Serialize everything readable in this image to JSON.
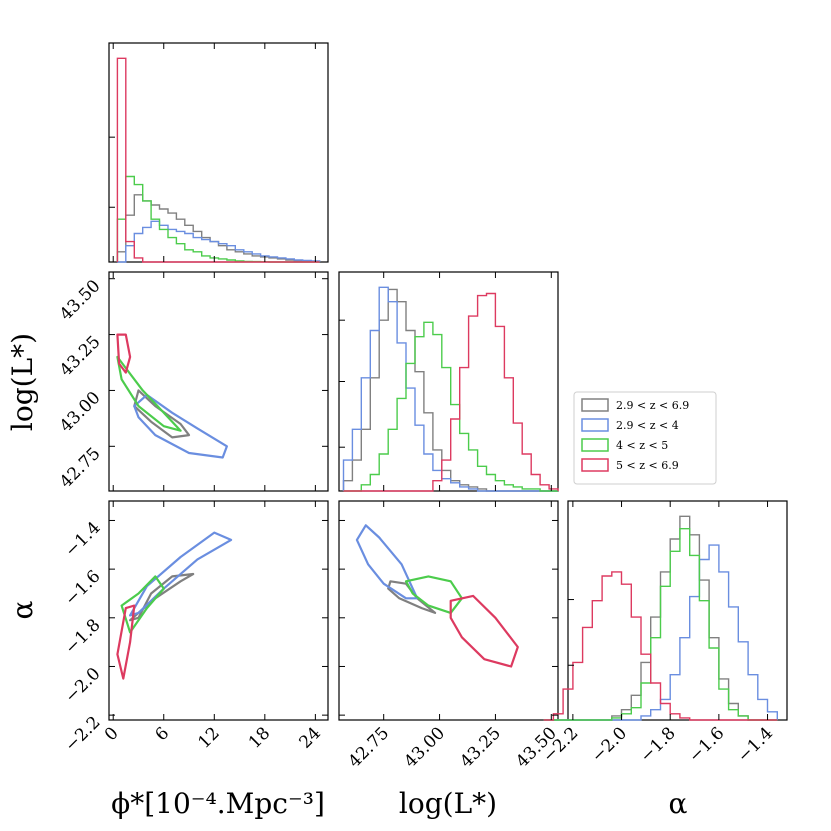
{
  "colors": {
    "all": "#808080",
    "z1": "#6a8ee0",
    "z2": "#4ccc4c",
    "z3": "#dd3a60"
  },
  "labels": {
    "phi_x": "ϕ*[10⁻⁴.Mpc⁻³]",
    "logL_y": "log(L*)",
    "logL_x": "log(L*)",
    "alpha_y": "α",
    "alpha_x": "α"
  },
  "legend": [
    {
      "key": "all",
      "label": "2.9 < z < 6.9"
    },
    {
      "key": "z1",
      "label": "2.9 < z < 4"
    },
    {
      "key": "z2",
      "label": "4 < z < 5"
    },
    {
      "key": "z3",
      "label": "5 < z < 6.9"
    }
  ],
  "chart_data": {
    "type": "corner",
    "parameters": [
      "phi_star",
      "log_L_star",
      "alpha"
    ],
    "grid": false,
    "legend_placement": "right of middle row",
    "axes": {
      "phi_star": {
        "range": [
          -0.5,
          25.5
        ],
        "ticks": [
          0,
          6,
          12,
          18,
          24
        ],
        "tick_labels": [
          "0",
          "6",
          "12",
          "18",
          "24"
        ]
      },
      "log_L_star": {
        "range": [
          42.55,
          43.53
        ],
        "ticks": [
          42.75,
          43.0,
          43.25,
          43.5
        ],
        "tick_labels": [
          "42.75",
          "43.00",
          "43.25",
          "43.50"
        ]
      },
      "alpha": {
        "range": [
          -2.22,
          -1.32
        ],
        "ticks": [
          -2.2,
          -2.0,
          -1.8,
          -1.6,
          -1.4
        ],
        "tick_labels": [
          "−2.2",
          "−2.0",
          "−1.8",
          "−1.6",
          "−1.4"
        ]
      }
    },
    "hist_phi": {
      "bin_edges": [
        0.5,
        1.5,
        2.5,
        3.5,
        4.5,
        5.5,
        6.5,
        7.5,
        8.5,
        9.5,
        10.5,
        11.5,
        12.5,
        13.5,
        14.5,
        15.5,
        16.5,
        17.5,
        18.5,
        19.5,
        20.5,
        21.5,
        22.5,
        23.5,
        24.5
      ],
      "series": [
        {
          "key": "all",
          "counts": [
            0.05,
            0.23,
            0.33,
            0.3,
            0.28,
            0.26,
            0.24,
            0.21,
            0.18,
            0.15,
            0.12,
            0.1,
            0.08,
            0.06,
            0.05,
            0.04,
            0.03,
            0.025,
            0.02,
            0.015,
            0.01,
            0.005,
            0.004,
            0.003
          ]
        },
        {
          "key": "z1",
          "counts": [
            0.0,
            0.08,
            0.14,
            0.17,
            0.2,
            0.18,
            0.16,
            0.15,
            0.14,
            0.12,
            0.11,
            0.1,
            0.09,
            0.08,
            0.06,
            0.05,
            0.04,
            0.03,
            0.025,
            0.02,
            0.015,
            0.01,
            0.008,
            0.005
          ]
        },
        {
          "key": "z2",
          "counts": [
            0.21,
            0.42,
            0.38,
            0.3,
            0.21,
            0.16,
            0.12,
            0.09,
            0.06,
            0.05,
            0.03,
            0.02,
            0.015,
            0.01,
            0.005,
            0.003,
            0.002,
            0.001,
            0.0,
            0.0,
            0.0,
            0.0,
            0.0,
            0.0
          ]
        },
        {
          "key": "z3",
          "counts": [
            1.0,
            0.1,
            0.02,
            0.0,
            0.0,
            0.0,
            0.0,
            0.0,
            0.0,
            0.0,
            0.0,
            0.0,
            0.0,
            0.0,
            0.0,
            0.0,
            0.0,
            0.0,
            0.0,
            0.0,
            0.0,
            0.0,
            0.0,
            0.0
          ]
        }
      ]
    },
    "hist_logL": {
      "bin_edges": [
        42.57,
        42.61,
        42.65,
        42.69,
        42.73,
        42.77,
        42.81,
        42.85,
        42.89,
        42.93,
        42.97,
        43.01,
        43.05,
        43.09,
        43.13,
        43.17,
        43.21,
        43.25,
        43.29,
        43.33,
        43.37,
        43.41,
        43.45,
        43.49,
        43.53
      ],
      "series": [
        {
          "key": "all",
          "counts": [
            0.05,
            0.15,
            0.3,
            0.55,
            0.83,
            0.98,
            0.92,
            0.78,
            0.58,
            0.38,
            0.2,
            0.1,
            0.05,
            0.03,
            0.02,
            0.01,
            0.0,
            0.0,
            0.0,
            0.0,
            0.0,
            0.0,
            0.0,
            0.0
          ]
        },
        {
          "key": "z1",
          "counts": [
            0.15,
            0.3,
            0.55,
            0.78,
            0.99,
            0.92,
            0.72,
            0.5,
            0.32,
            0.18,
            0.1,
            0.06,
            0.04,
            0.02,
            0.01,
            0.0,
            0.0,
            0.0,
            0.0,
            0.0,
            0.0,
            0.0,
            0.0,
            0.0
          ]
        },
        {
          "key": "z2",
          "counts": [
            0.0,
            0.0,
            0.03,
            0.08,
            0.18,
            0.3,
            0.45,
            0.62,
            0.75,
            0.82,
            0.76,
            0.6,
            0.42,
            0.28,
            0.2,
            0.12,
            0.08,
            0.05,
            0.03,
            0.02,
            0.01,
            0.01,
            0.0,
            0.0
          ]
        },
        {
          "key": "z3",
          "counts": [
            0.0,
            0.0,
            0.0,
            0.0,
            0.0,
            0.0,
            0.0,
            0.0,
            0.0,
            0.0,
            0.05,
            0.15,
            0.35,
            0.6,
            0.85,
            0.95,
            0.96,
            0.8,
            0.55,
            0.33,
            0.18,
            0.08,
            0.03,
            0.01
          ]
        }
      ]
    },
    "hist_alpha": {
      "bin_edges": [
        -2.32,
        -2.28,
        -2.24,
        -2.2,
        -2.16,
        -2.12,
        -2.08,
        -2.04,
        -2.0,
        -1.96,
        -1.92,
        -1.88,
        -1.84,
        -1.8,
        -1.76,
        -1.72,
        -1.68,
        -1.64,
        -1.6,
        -1.56,
        -1.52,
        -1.48,
        -1.44,
        -1.4,
        -1.36
      ],
      "series": [
        {
          "key": "all",
          "counts": [
            0.0,
            0.0,
            0.0,
            0.0,
            0.0,
            0.0,
            0.0,
            0.02,
            0.05,
            0.12,
            0.28,
            0.5,
            0.72,
            0.88,
            0.99,
            0.9,
            0.68,
            0.4,
            0.2,
            0.08,
            0.02,
            0.0,
            0.0,
            0.0
          ]
        },
        {
          "key": "z1",
          "counts": [
            0.0,
            0.0,
            0.0,
            0.0,
            0.0,
            0.0,
            0.0,
            0.0,
            0.0,
            0.0,
            0.02,
            0.05,
            0.1,
            0.22,
            0.4,
            0.6,
            0.78,
            0.85,
            0.72,
            0.55,
            0.38,
            0.22,
            0.1,
            0.04
          ]
        },
        {
          "key": "z2",
          "counts": [
            0.0,
            0.0,
            0.0,
            0.0,
            0.0,
            0.0,
            0.0,
            0.01,
            0.03,
            0.06,
            0.18,
            0.4,
            0.65,
            0.82,
            0.93,
            0.8,
            0.58,
            0.35,
            0.15,
            0.05,
            0.02,
            0.0,
            0.0,
            0.0
          ]
        },
        {
          "key": "z3",
          "counts": [
            0.0,
            0.03,
            0.15,
            0.28,
            0.45,
            0.58,
            0.7,
            0.72,
            0.66,
            0.5,
            0.32,
            0.18,
            0.08,
            0.03,
            0.01,
            0.0,
            0.0,
            0.0,
            0.0,
            0.0,
            0.0,
            0.0,
            0.0,
            0.0
          ]
        }
      ]
    },
    "contours": {
      "phi_vs_logL": [
        {
          "key": "all",
          "points": [
            [
              3.0,
              43.0
            ],
            [
              5.0,
              42.93
            ],
            [
              8.0,
              42.85
            ],
            [
              9.0,
              42.8
            ],
            [
              7.0,
              42.79
            ],
            [
              4.5,
              42.86
            ],
            [
              2.5,
              42.93
            ],
            [
              3.0,
              43.0
            ]
          ]
        },
        {
          "key": "z1",
          "points": [
            [
              2.5,
              42.93
            ],
            [
              4.0,
              42.98
            ],
            [
              7.0,
              42.9
            ],
            [
              10.0,
              42.83
            ],
            [
              13.5,
              42.75
            ],
            [
              13.0,
              42.7
            ],
            [
              9.0,
              42.72
            ],
            [
              5.0,
              42.8
            ],
            [
              3.0,
              42.88
            ],
            [
              2.5,
              42.93
            ]
          ]
        },
        {
          "key": "z2",
          "points": [
            [
              0.5,
              43.15
            ],
            [
              1.5,
              43.1
            ],
            [
              3.5,
              43.0
            ],
            [
              6.0,
              42.9
            ],
            [
              8.0,
              42.82
            ],
            [
              6.0,
              42.84
            ],
            [
              3.0,
              42.93
            ],
            [
              1.0,
              43.05
            ],
            [
              0.5,
              43.15
            ]
          ]
        },
        {
          "key": "z3",
          "points": [
            [
              0.5,
              43.25
            ],
            [
              1.5,
              43.25
            ],
            [
              2.0,
              43.15
            ],
            [
              1.5,
              43.08
            ],
            [
              0.7,
              43.12
            ],
            [
              0.5,
              43.25
            ]
          ]
        }
      ],
      "phi_vs_alpha": [
        {
          "key": "all",
          "points": [
            [
              2.0,
              -1.81
            ],
            [
              5.0,
              -1.72
            ],
            [
              8.0,
              -1.65
            ],
            [
              9.5,
              -1.62
            ],
            [
              7.0,
              -1.63
            ],
            [
              4.5,
              -1.7
            ],
            [
              3.0,
              -1.8
            ],
            [
              2.0,
              -1.81
            ]
          ]
        },
        {
          "key": "z1",
          "points": [
            [
              2.0,
              -1.79
            ],
            [
              4.0,
              -1.67
            ],
            [
              8.0,
              -1.55
            ],
            [
              12.0,
              -1.45
            ],
            [
              14.0,
              -1.48
            ],
            [
              10.0,
              -1.56
            ],
            [
              6.0,
              -1.68
            ],
            [
              3.0,
              -1.78
            ],
            [
              2.0,
              -1.79
            ]
          ]
        },
        {
          "key": "z2",
          "points": [
            [
              1.0,
              -1.75
            ],
            [
              3.0,
              -1.7
            ],
            [
              5.0,
              -1.63
            ],
            [
              6.0,
              -1.68
            ],
            [
              4.0,
              -1.76
            ],
            [
              2.0,
              -1.86
            ],
            [
              1.0,
              -1.75
            ]
          ]
        },
        {
          "key": "z3",
          "points": [
            [
              0.5,
              -1.95
            ],
            [
              1.5,
              -1.76
            ],
            [
              2.5,
              -1.75
            ],
            [
              2.0,
              -1.9
            ],
            [
              1.2,
              -2.05
            ],
            [
              0.5,
              -1.95
            ]
          ]
        }
      ],
      "logL_vs_alpha": [
        {
          "key": "all",
          "points": [
            [
              42.78,
              -1.65
            ],
            [
              42.85,
              -1.66
            ],
            [
              42.9,
              -1.72
            ],
            [
              42.98,
              -1.78
            ],
            [
              42.92,
              -1.76
            ],
            [
              42.82,
              -1.72
            ],
            [
              42.77,
              -1.68
            ],
            [
              42.78,
              -1.65
            ]
          ]
        },
        {
          "key": "z1",
          "points": [
            [
              42.67,
              -1.42
            ],
            [
              42.73,
              -1.47
            ],
            [
              42.83,
              -1.58
            ],
            [
              42.9,
              -1.72
            ],
            [
              42.85,
              -1.72
            ],
            [
              42.75,
              -1.66
            ],
            [
              42.68,
              -1.58
            ],
            [
              42.63,
              -1.48
            ],
            [
              42.67,
              -1.42
            ]
          ]
        },
        {
          "key": "z2",
          "points": [
            [
              42.85,
              -1.65
            ],
            [
              42.95,
              -1.63
            ],
            [
              43.05,
              -1.65
            ],
            [
              43.1,
              -1.72
            ],
            [
              43.05,
              -1.78
            ],
            [
              42.95,
              -1.75
            ],
            [
              42.88,
              -1.7
            ],
            [
              42.85,
              -1.65
            ]
          ]
        },
        {
          "key": "z3",
          "points": [
            [
              43.05,
              -1.73
            ],
            [
              43.15,
              -1.71
            ],
            [
              43.25,
              -1.8
            ],
            [
              43.35,
              -1.92
            ],
            [
              43.32,
              -2.0
            ],
            [
              43.2,
              -1.97
            ],
            [
              43.1,
              -1.88
            ],
            [
              43.05,
              -1.8
            ],
            [
              43.05,
              -1.73
            ]
          ]
        }
      ]
    }
  }
}
